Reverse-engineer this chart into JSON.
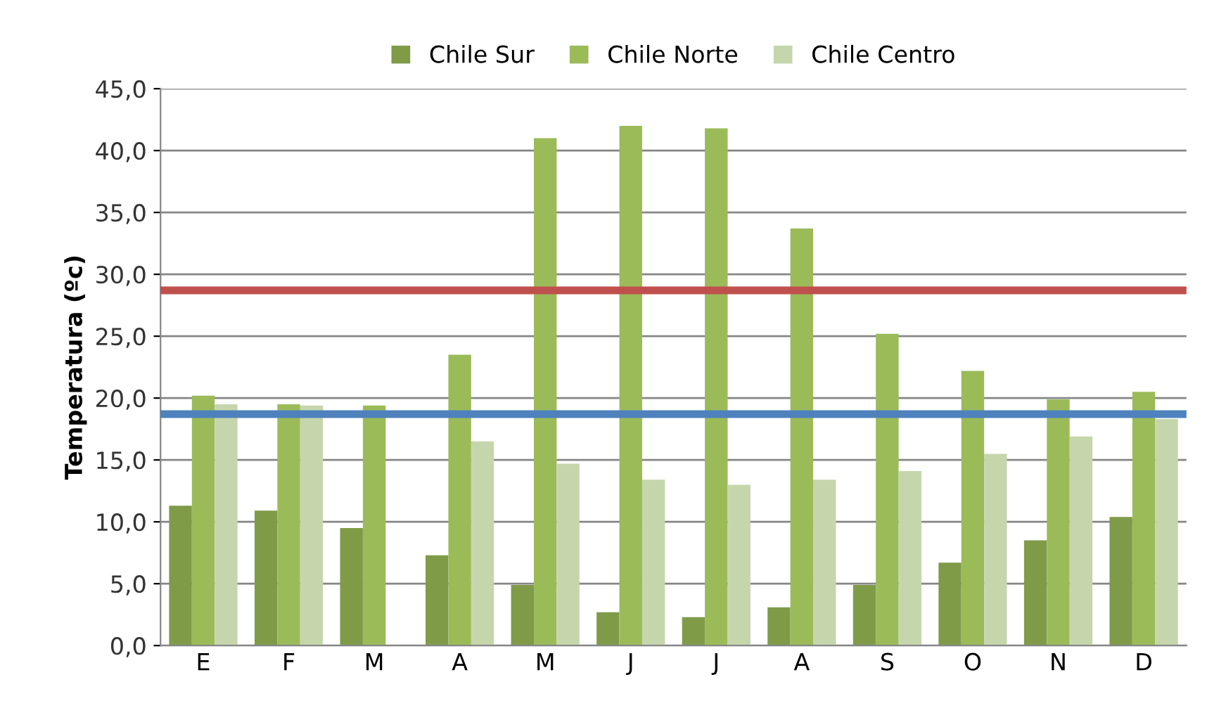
{
  "chart_data": {
    "type": "bar",
    "ylabel": "Temperatura (ºc)",
    "categories": [
      "E",
      "F",
      "M",
      "A",
      "M",
      "J",
      "J",
      "A",
      "S",
      "O",
      "N",
      "D"
    ],
    "series": [
      {
        "name": "Chile Sur",
        "color": "#7f9b48",
        "values": [
          11.3,
          10.9,
          9.5,
          7.3,
          4.9,
          2.7,
          2.3,
          3.1,
          4.9,
          6.7,
          8.5,
          10.4
        ]
      },
      {
        "name": "Chile Norte",
        "color": "#9bbb59",
        "values": [
          20.2,
          19.5,
          19.4,
          23.5,
          41.0,
          42.0,
          41.8,
          33.7,
          25.2,
          22.2,
          19.9,
          20.5
        ]
      },
      {
        "name": "Chile Centro",
        "color": "#c6d6ac",
        "values": [
          19.5,
          19.4,
          null,
          16.5,
          14.7,
          13.4,
          13.0,
          13.4,
          14.1,
          15.5,
          16.9,
          18.3
        ]
      }
    ],
    "ylim": [
      0,
      45
    ],
    "yticks": [
      {
        "value": 0,
        "label": "0,0"
      },
      {
        "value": 5,
        "label": "5,0"
      },
      {
        "value": 10,
        "label": "10,0"
      },
      {
        "value": 15,
        "label": "15,0"
      },
      {
        "value": 20,
        "label": "20,0"
      },
      {
        "value": 25,
        "label": "25,0"
      },
      {
        "value": 30,
        "label": "30,0"
      },
      {
        "value": 35,
        "label": "35,0"
      },
      {
        "value": 40,
        "label": "40,0"
      },
      {
        "value": 45,
        "label": "45,0"
      }
    ],
    "ref_lines": [
      {
        "axis": "y",
        "value": 28.7,
        "color": "#c0504d"
      },
      {
        "axis": "y",
        "value": 18.7,
        "color": "#4f81bd"
      }
    ],
    "grid": "y",
    "legend": "top"
  }
}
